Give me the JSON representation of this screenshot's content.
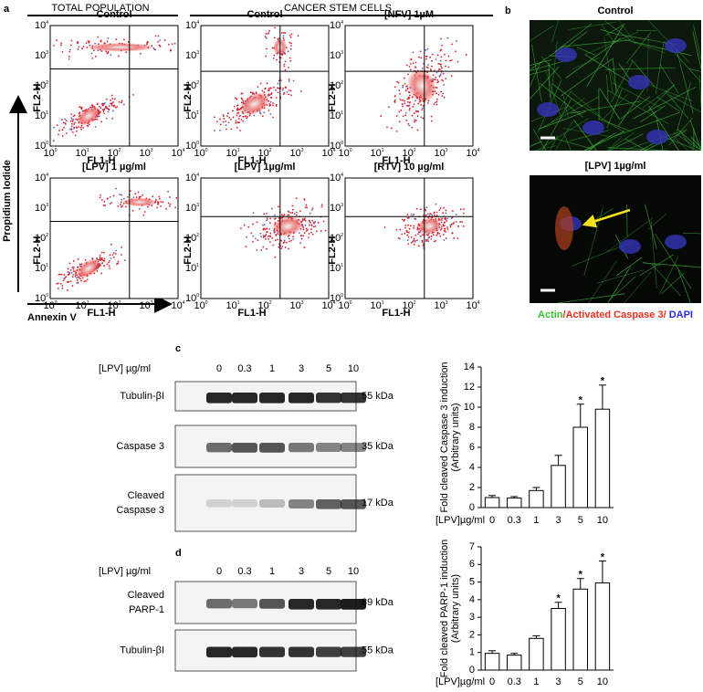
{
  "panel_a": {
    "label": "a",
    "headers": [
      "TOTAL POPULATION",
      "CANCER STEM CELLS"
    ],
    "plot_titles": [
      "Control",
      "Control",
      "[NFV] 1µM",
      "[LPV] 1 µg/ml",
      "[LPV] 1µg/ml",
      "[RTV] 10 µg/ml"
    ],
    "plot_x_label": "FL1-H",
    "plot_y_label": "FL2-H",
    "tick_base": "10",
    "tick_exponents": [
      "0",
      "1",
      "2",
      "3",
      "4"
    ],
    "y_axis": "Propidium Iodide",
    "x_axis": "Annexin V"
  },
  "panel_b": {
    "label": "b",
    "titles": [
      "Control",
      "[LPV] 1µg/ml"
    ],
    "legend": [
      {
        "text": "Actin",
        "color": "#33c233"
      },
      {
        "text": "/Activated Caspase 3/ ",
        "color": "#e8321e"
      },
      {
        "text": "DAPI",
        "color": "#2a2ae0"
      }
    ]
  },
  "panel_c": {
    "label": "c",
    "dose_label": "[LPV] µg/ml",
    "doses": [
      "0",
      "0.3",
      "1",
      "3",
      "5",
      "10"
    ],
    "blots": [
      {
        "name": [
          "Tubulin-βI"
        ],
        "kda": "55 kDa"
      },
      {
        "name": [
          "Caspase 3"
        ],
        "kda": "35 kDa"
      },
      {
        "name": [
          "Cleaved",
          "Caspase 3"
        ],
        "kda": "17 kDa"
      }
    ]
  },
  "panel_d": {
    "label": "d",
    "dose_label": "[LPV] µg/ml",
    "doses": [
      "0",
      "0.3",
      "1",
      "3",
      "5",
      "10"
    ],
    "blots": [
      {
        "name": [
          "Cleaved",
          "PARP-1"
        ],
        "kda": "89 kDa"
      },
      {
        "name": [
          "Tubulin-βI"
        ],
        "kda": "55 kDa"
      }
    ]
  },
  "chart_data": [
    {
      "type": "bar",
      "ylabel": [
        "Fold  cleaved Caspase 3 induction",
        "(Arbitrary units)"
      ],
      "xlabel": "[LPV]µg/ml",
      "categories": [
        "0",
        "0.3",
        "1",
        "3",
        "5",
        "10"
      ],
      "values": [
        1.0,
        0.95,
        1.7,
        4.2,
        8.0,
        9.8
      ],
      "errors": [
        0.2,
        0.15,
        0.3,
        1.0,
        2.3,
        2.4
      ],
      "significance": [
        null,
        null,
        null,
        null,
        "*",
        "*"
      ],
      "ylim": [
        0,
        14
      ],
      "yticks": [
        0,
        2,
        4,
        6,
        8,
        10,
        12,
        14
      ],
      "color": "#ffffff"
    },
    {
      "type": "bar",
      "ylabel": [
        "Fold cleaved PARP-1 induction",
        "(Arbitrary units)"
      ],
      "xlabel": "[LPV]µg/ml",
      "categories": [
        "0",
        "0.3",
        "1",
        "3",
        "5",
        "10"
      ],
      "values": [
        0.95,
        0.85,
        1.8,
        3.5,
        4.6,
        4.95
      ],
      "errors": [
        0.15,
        0.1,
        0.15,
        0.35,
        0.6,
        1.25
      ],
      "significance": [
        null,
        null,
        null,
        "*",
        "*",
        "*"
      ],
      "ylim": [
        0,
        7
      ],
      "yticks": [
        0,
        1,
        2,
        3,
        4,
        5,
        6,
        7
      ],
      "color": "#ffffff"
    }
  ]
}
